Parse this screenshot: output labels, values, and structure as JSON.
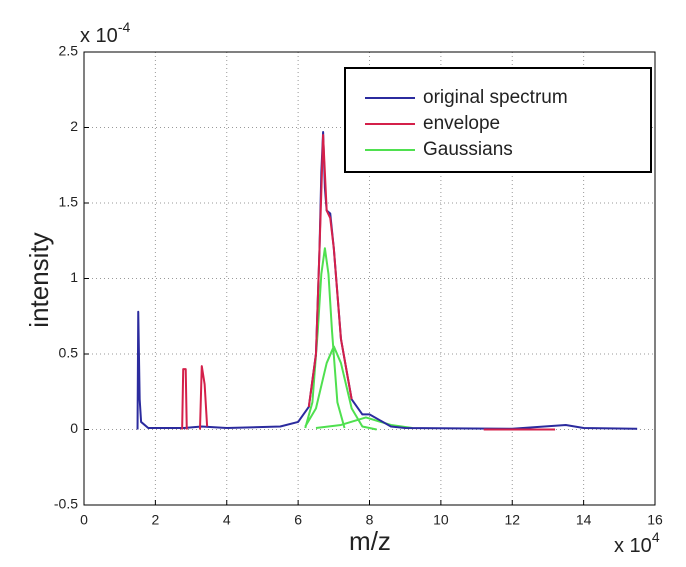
{
  "chart_data": {
    "type": "line",
    "xlabel": "m/z",
    "ylabel": "intensity",
    "x_multiplier": {
      "base": "x 10",
      "exponent": "4"
    },
    "y_multiplier": {
      "base": "x 10",
      "exponent": "-4"
    },
    "xlim": [
      0,
      16
    ],
    "xticks": [
      0,
      2,
      4,
      6,
      8,
      10,
      12,
      14,
      16
    ],
    "ylim": [
      -0.5,
      2.5
    ],
    "yticks": [
      -0.5,
      0,
      0.5,
      1,
      1.5,
      2,
      2.5
    ],
    "grid": true,
    "legend": "upper right",
    "series": [
      {
        "name": "original spectrum",
        "color": "#2b2b9e",
        "x": [
          1.5,
          1.52,
          1.56,
          1.6,
          1.8,
          2.8,
          3.3,
          4,
          5.5,
          6.0,
          6.3,
          6.5,
          6.6,
          6.65,
          6.7,
          6.75,
          6.8,
          6.9,
          7.0,
          7.2,
          7.5,
          7.8,
          8.0,
          8.3,
          8.6,
          9,
          12,
          13.5,
          14,
          15.5
        ],
        "values": [
          0,
          0.78,
          0.2,
          0.05,
          0.01,
          0.01,
          0.02,
          0.01,
          0.02,
          0.05,
          0.15,
          0.5,
          1.2,
          1.7,
          1.97,
          1.6,
          1.45,
          1.43,
          1.2,
          0.6,
          0.2,
          0.1,
          0.1,
          0.06,
          0.02,
          0.01,
          0.005,
          0.03,
          0.01,
          0.005
        ]
      },
      {
        "name": "envelope",
        "color": "#d4204a",
        "x": [
          2.75,
          2.78,
          2.85,
          2.88,
          3.0,
          3.25,
          3.3,
          3.38,
          3.45,
          5.0,
          6.3,
          6.5,
          6.6,
          6.7,
          6.8,
          6.9,
          7.0,
          7.2,
          7.5,
          9.0,
          11.2,
          13.2
        ],
        "values": [
          0,
          0.4,
          0.4,
          0,
          null,
          0,
          0.42,
          0.3,
          0.02,
          null,
          0.15,
          0.5,
          1.2,
          1.95,
          1.45,
          1.4,
          1.2,
          0.6,
          0.2,
          null,
          0,
          0
        ]
      },
      {
        "name": "Gaussians",
        "color": "#4fe04f",
        "x": [
          6.2,
          6.4,
          6.55,
          6.65,
          6.75,
          6.85,
          6.95,
          7.1,
          7.3,
          7.5,
          6.2,
          6.5,
          6.8,
          7.0,
          7.2,
          7.5,
          7.8,
          8.2,
          8.4,
          6.5,
          7.2,
          7.9,
          8.6,
          9.2
        ],
        "values": [
          0.01,
          0.18,
          0.65,
          1.03,
          1.2,
          1.03,
          0.65,
          0.18,
          0.01,
          null,
          0.02,
          0.14,
          0.44,
          0.55,
          0.44,
          0.14,
          0.02,
          0,
          null,
          0.01,
          0.03,
          0.08,
          0.03,
          0.01
        ]
      }
    ]
  }
}
